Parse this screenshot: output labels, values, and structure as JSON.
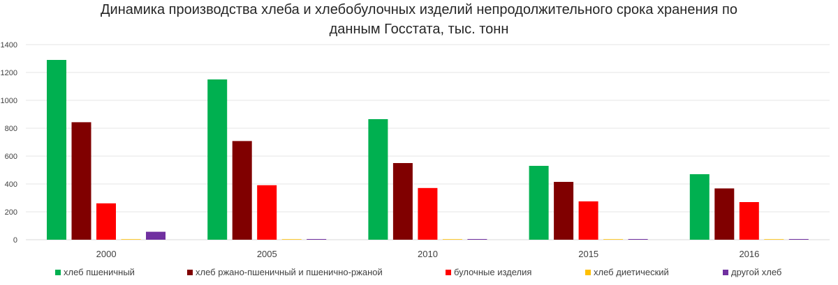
{
  "chart_data": {
    "type": "bar",
    "title": "Динамика производства хлеба и хлебобулочных изделий непродолжительного срока хранения по\nданным Госстата, тыс. тонн",
    "xlabel": "",
    "ylabel": "",
    "categories": [
      "2000",
      "2005",
      "2010",
      "2015",
      "2016"
    ],
    "ylim": [
      0,
      1400
    ],
    "yticks": [
      0,
      200,
      400,
      600,
      800,
      1000,
      1200,
      1400
    ],
    "grid": true,
    "legend_position": "bottom",
    "series": [
      {
        "name": "хлеб пшеничный",
        "color": "#00b050",
        "values": [
          1290,
          1150,
          865,
          530,
          470
        ]
      },
      {
        "name": "хлеб ржано-пшеничный и пшенично-ржаной",
        "color": "#800000",
        "values": [
          843,
          708,
          550,
          415,
          368
        ]
      },
      {
        "name": "булочные изделия",
        "color": "#ff0000",
        "values": [
          261,
          391,
          371,
          275,
          270
        ]
      },
      {
        "name": "хлеб диетический",
        "color": "#ffc000",
        "values": [
          4,
          4,
          4,
          4,
          4
        ]
      },
      {
        "name": "другой хлеб",
        "color": "#7030a0",
        "values": [
          57,
          5,
          5,
          5,
          5
        ]
      }
    ]
  }
}
